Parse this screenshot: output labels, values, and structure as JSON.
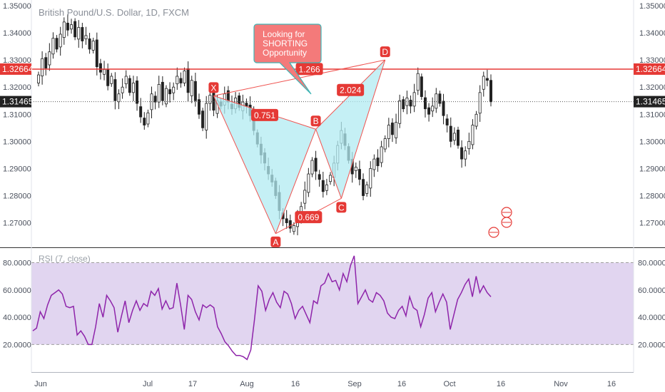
{
  "header": {
    "title": "British Pound/U.S. Dollar, 1D, FXCM"
  },
  "rsi_panel": {
    "title": "RSI (7, close)"
  },
  "callout": {
    "lines": [
      "Looking for",
      "SHORTING",
      "Opportunity"
    ]
  },
  "colors": {
    "bull": "#26a69a",
    "bear": "#222222",
    "wick": "#222222",
    "resistance": "#e53935",
    "pattern_fill": "#b2ebf2",
    "pattern_line": "#ef5350",
    "label_bg": "#e53935",
    "rsi_line": "#8e24aa",
    "rsi_band": "#e1d5f0",
    "price_badge_dark": "#222222",
    "callout_bg": "#f47a7a"
  },
  "chart_data": [
    {
      "type": "candlestick",
      "title": "British Pound/U.S. Dollar, 1D, FXCM",
      "ylim": [
        1.2628,
        1.35
      ],
      "yticks": [
        "1.35000",
        "1.34000",
        "1.33000",
        "1.32000",
        "1.31000",
        "1.30000",
        "1.29000",
        "1.28000",
        "1.27000"
      ],
      "xticks": [
        "Jun",
        "Jul",
        "17",
        "Aug",
        "16",
        "Sep",
        "16",
        "Oct",
        "16",
        "Nov",
        "16"
      ],
      "closes": [
        1.3245,
        1.3305,
        1.327,
        1.333,
        1.338,
        1.334,
        1.3395,
        1.344,
        1.341,
        1.343,
        1.3385,
        1.342,
        1.337,
        1.339,
        1.334,
        1.337,
        1.3275,
        1.3255,
        1.3265,
        1.3205,
        1.324,
        1.315,
        1.3175,
        1.32,
        1.324,
        1.318,
        1.3215,
        1.314,
        1.309,
        1.306,
        1.3105,
        1.3175,
        1.3145,
        1.321,
        1.315,
        1.3195,
        1.3175,
        1.32,
        1.324,
        1.3215,
        1.326,
        1.318,
        1.3225,
        1.315,
        1.31,
        1.305,
        1.314,
        1.317,
        1.3115,
        1.315,
        1.313,
        1.3175,
        1.3145,
        1.312,
        1.316,
        1.3125,
        1.3145,
        1.313,
        1.3095,
        1.304,
        1.299,
        1.295,
        1.292,
        1.288,
        1.285,
        1.28,
        1.2745,
        1.2715,
        1.27,
        1.268,
        1.269,
        1.272,
        1.276,
        1.282,
        1.288,
        1.293,
        1.289,
        1.286,
        1.2815,
        1.284,
        1.2875,
        1.292,
        1.2985,
        1.304,
        1.2985,
        1.293,
        1.288,
        1.2905,
        1.286,
        1.28,
        1.284,
        1.29,
        1.2935,
        1.291,
        1.298,
        1.301,
        1.306,
        1.3025,
        1.307,
        1.315,
        1.312,
        1.316,
        1.313,
        1.318,
        1.325,
        1.3165,
        1.312,
        1.31,
        1.313,
        1.3175,
        1.314,
        1.3095,
        1.306,
        1.3,
        1.303,
        1.2985,
        1.2935,
        1.2965,
        1.3,
        1.306,
        1.31,
        1.318,
        1.324,
        1.3225,
        1.3146
      ],
      "resistance": 1.32664,
      "last_price": 1.31465,
      "price_badges": [
        "1.32664",
        "1.31465"
      ],
      "harmonic_pattern": {
        "points": [
          {
            "name": "X",
            "price": 1.3168
          },
          {
            "name": "A",
            "price": 1.266
          },
          {
            "name": "B",
            "price": 1.3045
          },
          {
            "name": "C",
            "price": 1.279
          },
          {
            "name": "D",
            "price": 1.33
          }
        ],
        "ratios": [
          "0.751",
          "0.669",
          "1.266",
          "2.024"
        ]
      }
    },
    {
      "type": "line",
      "title": "RSI (7, close)",
      "ylim": [
        4,
        86
      ],
      "yticks": [
        "80.0000",
        "60.0000",
        "40.0000",
        "20.0000"
      ],
      "band": [
        20,
        80
      ],
      "values": [
        30,
        32,
        44,
        39,
        49,
        56,
        58,
        60,
        57,
        48,
        47,
        48,
        27,
        30,
        26,
        20,
        20,
        33,
        50,
        40,
        56,
        52,
        47,
        29,
        41,
        52,
        36,
        45,
        52,
        45,
        50,
        48,
        59,
        56,
        61,
        46,
        52,
        46,
        47,
        65,
        49,
        31,
        56,
        53,
        44,
        38,
        49,
        47,
        49,
        47,
        33,
        28,
        22,
        19,
        15,
        12,
        12,
        11,
        9,
        16,
        38,
        63,
        59,
        45,
        53,
        58,
        51,
        47,
        59,
        57,
        50,
        39,
        45,
        48,
        42,
        36,
        52,
        50,
        63,
        65,
        72,
        66,
        67,
        60,
        72,
        66,
        78,
        85,
        50,
        55,
        60,
        53,
        51,
        58,
        56,
        52,
        43,
        40,
        39,
        45,
        48,
        41,
        55,
        47,
        45,
        33,
        42,
        54,
        58,
        44,
        51,
        57,
        51,
        31,
        42,
        53,
        58,
        64,
        68,
        55,
        70,
        58,
        63,
        58,
        55
      ]
    }
  ]
}
